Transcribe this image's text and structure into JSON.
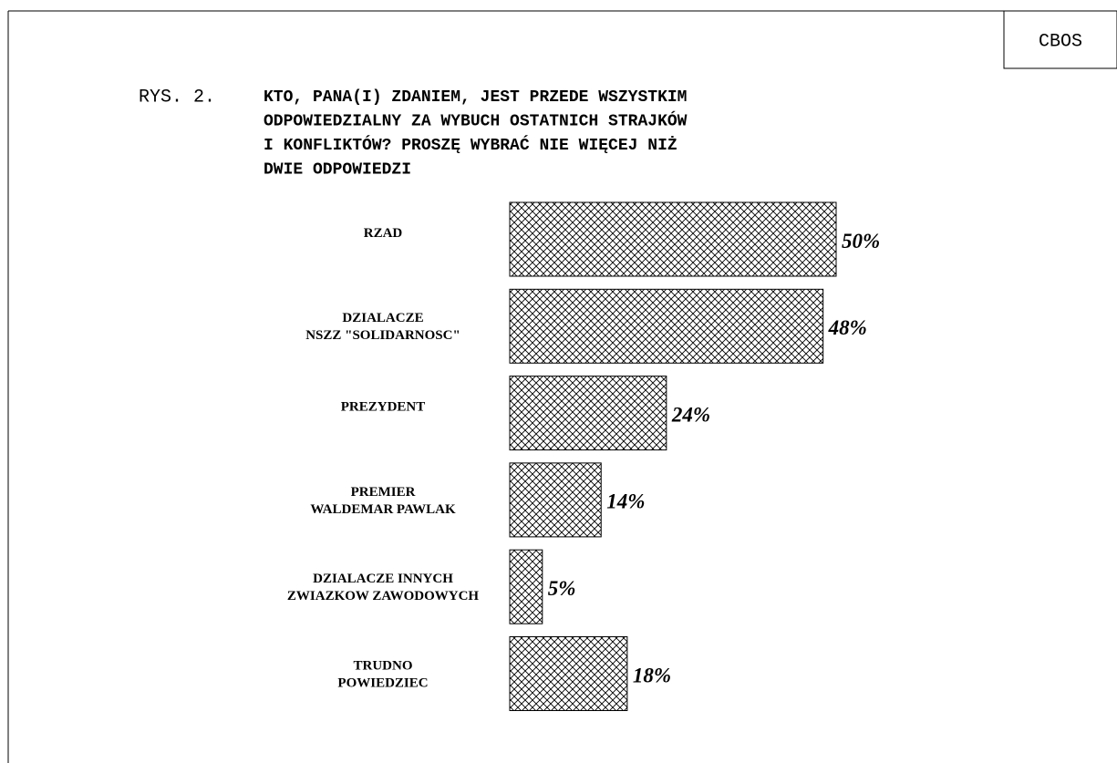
{
  "header": {
    "source": "CBOS"
  },
  "chart_data": {
    "type": "bar",
    "orientation": "horizontal",
    "figure_label": "RYS. 2.",
    "title": [
      "KTO, PANA(I) ZDANIEM, JEST PRZEDE WSZYSTKIM",
      "ODPOWIEDZIALNY ZA WYBUCH OSTATNICH STRAJKÓW",
      "I KONFLIKTÓW? PROSZĘ WYBRAĆ NIE WIĘCEJ NIŻ",
      "DWIE ODPOWIEDZI"
    ],
    "categories": [
      [
        "RZAD"
      ],
      [
        "DZIALACZE",
        "NSZZ \"SOLIDARNOSC\""
      ],
      [
        "PREZYDENT"
      ],
      [
        "PREMIER",
        "WALDEMAR PAWLAK"
      ],
      [
        "DZIALACZE INNYCH",
        "ZWIAZKOW ZAWODOWYCH"
      ],
      [
        "TRUDNO",
        "POWIEDZIEC"
      ]
    ],
    "values": [
      50,
      48,
      24,
      14,
      5,
      18
    ],
    "value_labels": [
      "50%",
      "48%",
      "24%",
      "14%",
      "5%",
      "18%"
    ],
    "color": "#000000",
    "pattern": "crosshatch"
  }
}
